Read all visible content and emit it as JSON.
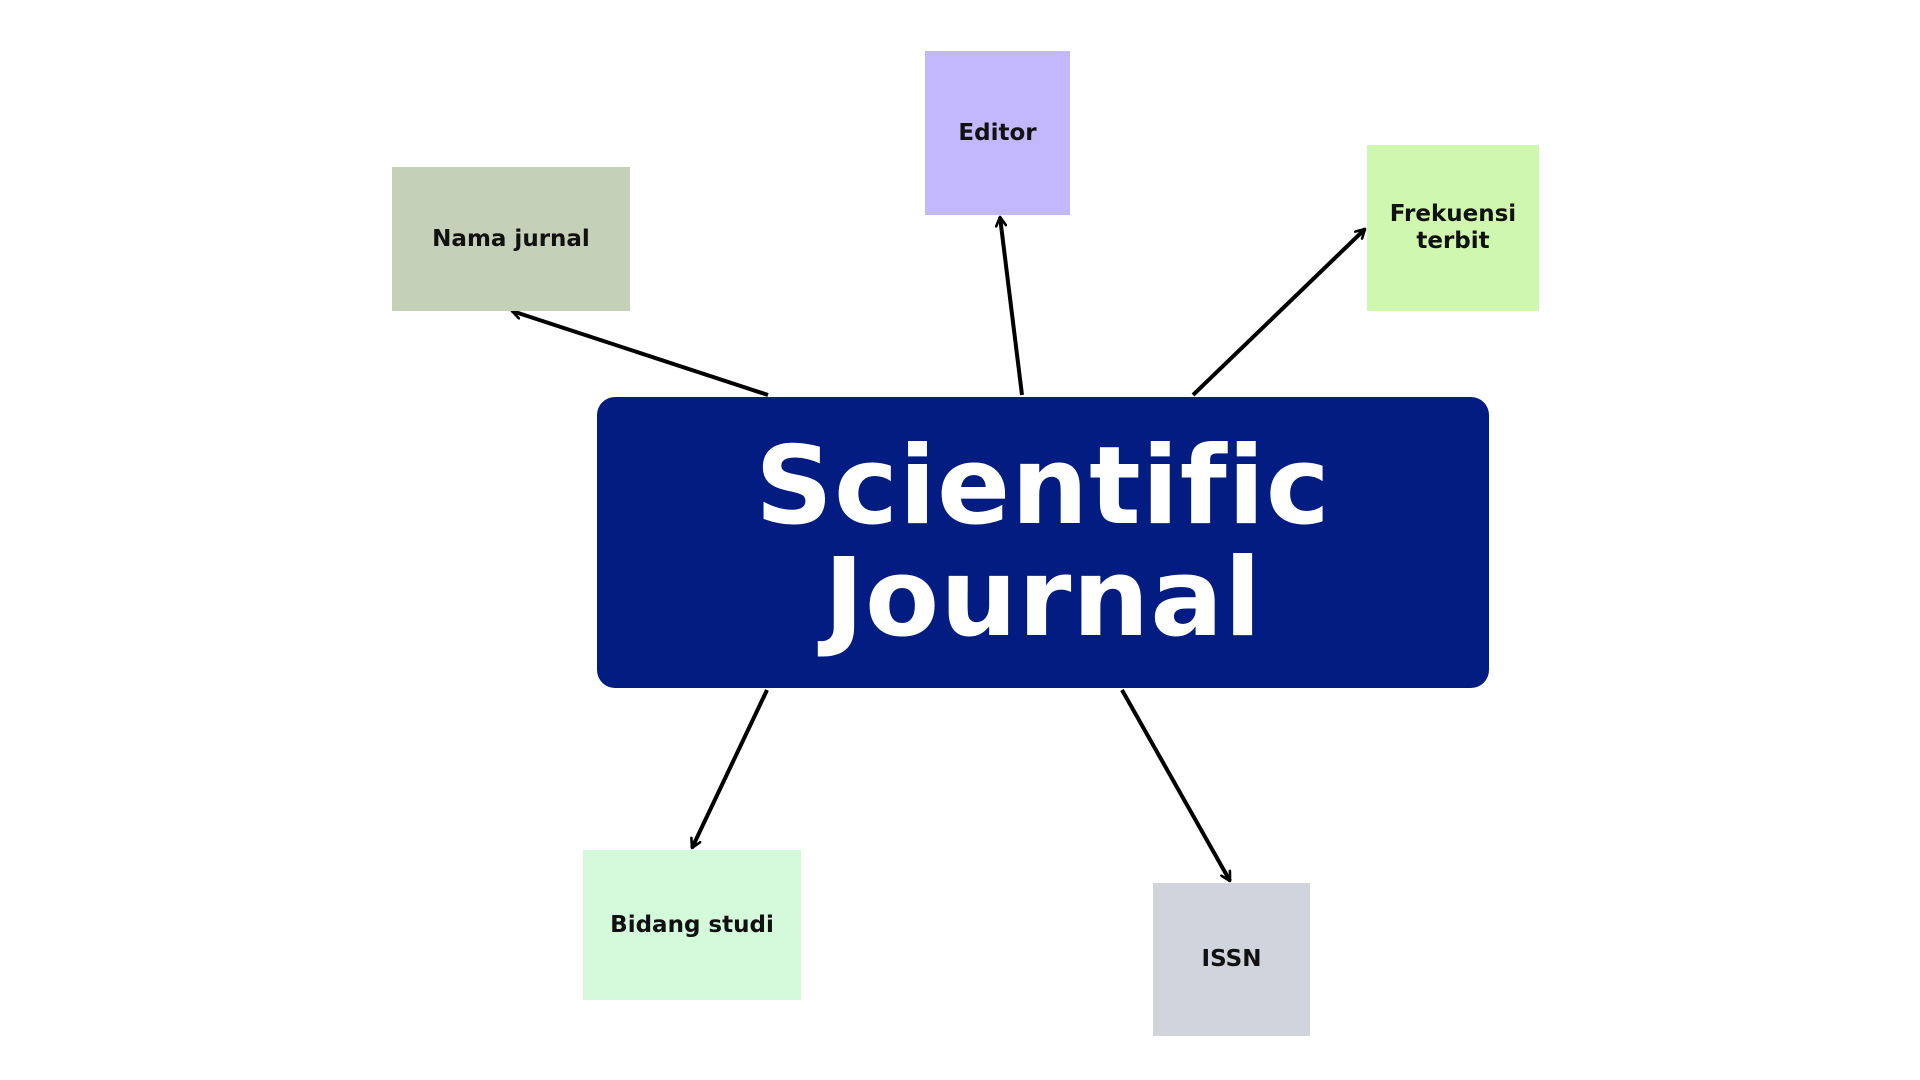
{
  "diagram": {
    "center": {
      "title": "Scientific Journal",
      "color": "#021c82",
      "text_color": "#ffffff"
    },
    "nodes": [
      {
        "id": "nama-jurnal",
        "label": "Nama jurnal",
        "color": "#c5d0b8"
      },
      {
        "id": "editor",
        "label": "Editor",
        "color": "#c4b8fc"
      },
      {
        "id": "frekuensi",
        "label": "Frekuensi terbit",
        "color": "#cff7b0"
      },
      {
        "id": "bidang-studi",
        "label": "Bidang studi",
        "color": "#d5fadb"
      },
      {
        "id": "issn",
        "label": "ISSN",
        "color": "#d0d4dc"
      }
    ],
    "edges": [
      {
        "from": "center",
        "to": "nama-jurnal"
      },
      {
        "from": "center",
        "to": "editor"
      },
      {
        "from": "center",
        "to": "frekuensi"
      },
      {
        "from": "center",
        "to": "bidang-studi"
      },
      {
        "from": "center",
        "to": "issn"
      }
    ],
    "arrow_color": "#000000"
  }
}
